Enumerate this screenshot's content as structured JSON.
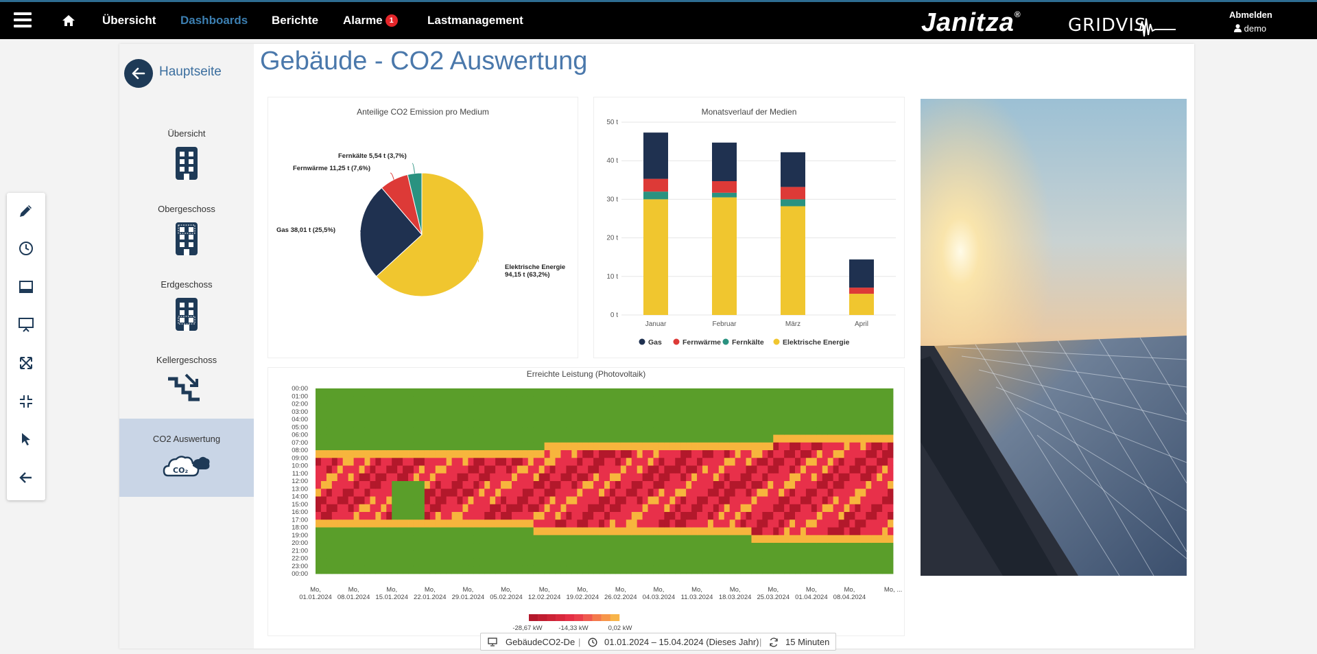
{
  "nav": {
    "links": [
      {
        "label": "Übersicht",
        "active": false
      },
      {
        "label": "Dashboards",
        "active": true
      },
      {
        "label": "Berichte",
        "active": false
      },
      {
        "label": "Alarme",
        "active": false
      },
      {
        "label": "Lastmanagement",
        "active": false
      }
    ],
    "alarm_count": "1",
    "brand": "Janitza",
    "brand_mark": "®",
    "product": "GRIDVIS",
    "logout": "Abmelden",
    "user": "demo"
  },
  "sidebar": {
    "back_label": "Hauptseite",
    "items": [
      {
        "label": "Übersicht",
        "icon": "building-icon"
      },
      {
        "label": "Obergeschoss",
        "icon": "building-top-floor-icon"
      },
      {
        "label": "Erdgeschoss",
        "icon": "building-ground-floor-icon"
      },
      {
        "label": "Kellergeschoss",
        "icon": "stairs-down-icon"
      },
      {
        "label": "CO2 Auswertung",
        "icon": "co2-cloud-icon",
        "icon_text": "CO₂",
        "active": true
      }
    ]
  },
  "toolbar": {
    "icons": [
      "pencil-icon",
      "clock-icon",
      "panel-icon",
      "presentation-icon",
      "expand-icon",
      "compress-icon",
      "cursor-icon",
      "arrow-left-icon"
    ]
  },
  "page": {
    "title": "Gebäude - CO2 Auswertung"
  },
  "colors": {
    "gas": "#1f3150",
    "fernwaerme": "#dd3a37",
    "fernkaelte": "#2a9280",
    "elektrisch": "#f0c62f",
    "accent": "#4a78ab"
  },
  "chart_data": [
    {
      "type": "pie",
      "title": "Anteilige CO2 Emission pro Medium",
      "slices": [
        {
          "name": "Elektrische Energie",
          "value": 94.15,
          "label_line1": "Elektrische Energie",
          "label_line2": "94,15 t (63,2%)"
        },
        {
          "name": "Gas",
          "value": 38.01,
          "label_line1": "Gas 38,01 t (25,5%)",
          "label_line2": ""
        },
        {
          "name": "Fernwärme",
          "value": 11.25,
          "label_line1": "Fernwärme 11,25 t (7,6%)",
          "label_line2": ""
        },
        {
          "name": "Fernkälte",
          "value": 5.54,
          "label_line1": "Fernkälte 5,54 t (3,7%)",
          "label_line2": ""
        }
      ]
    },
    {
      "type": "bar",
      "stacked": true,
      "title": "Monatsverlauf der Medien",
      "categories": [
        "Januar",
        "Februar",
        "März",
        "April"
      ],
      "yticks": [
        "0 t",
        "10 t",
        "20 t",
        "30 t",
        "40 t",
        "50 t"
      ],
      "ylim": [
        0,
        50
      ],
      "series": [
        {
          "name": "Elektrische Energie",
          "values": [
            30.0,
            30.5,
            28.2,
            5.5
          ]
        },
        {
          "name": "Fernkälte",
          "values": [
            2.0,
            1.2,
            1.8,
            0
          ]
        },
        {
          "name": "Fernwärme",
          "values": [
            3.3,
            3.0,
            3.2,
            1.6
          ]
        },
        {
          "name": "Gas",
          "values": [
            12.0,
            10.0,
            9.0,
            7.3
          ]
        }
      ],
      "legend": [
        "Gas",
        "Fernwärme",
        "Fernkälte",
        "Elektrische Energie"
      ],
      "legend_position": "bottom"
    },
    {
      "type": "heatmap",
      "title": "Erreichte Leistung (Photovoltaik)",
      "ylabels": [
        "00:00",
        "01:00",
        "02:00",
        "03:00",
        "04:00",
        "05:00",
        "06:00",
        "07:00",
        "08:00",
        "09:00",
        "10:00",
        "11:00",
        "12:00",
        "13:00",
        "14:00",
        "15:00",
        "16:00",
        "17:00",
        "18:00",
        "19:00",
        "20:00",
        "21:00",
        "22:00",
        "23:00",
        "00:00"
      ],
      "xlabels": [
        "01.01.2024",
        "08.01.2024",
        "15.01.2024",
        "22.01.2024",
        "29.01.2024",
        "05.02.2024",
        "12.02.2024",
        "19.02.2024",
        "26.02.2024",
        "04.03.2024",
        "11.03.2024",
        "18.03.2024",
        "25.03.2024",
        "01.04.2024",
        "08.04.2024",
        "..."
      ],
      "xlabel_prefix": "Mo,",
      "days": 106,
      "color_scale": [
        "#b3182b",
        "#e8304a",
        "#f7b53d",
        "#5a9e2a"
      ],
      "legend_ticks": [
        "-28,67 kW",
        "-14,33 kW",
        "0,02 kW"
      ]
    }
  ],
  "status": {
    "dashboard": "GebäudeCO2-De",
    "range": "01.01.2024 – 15.04.2024 (Dieses Jahr)",
    "interval": "15 Minuten"
  }
}
